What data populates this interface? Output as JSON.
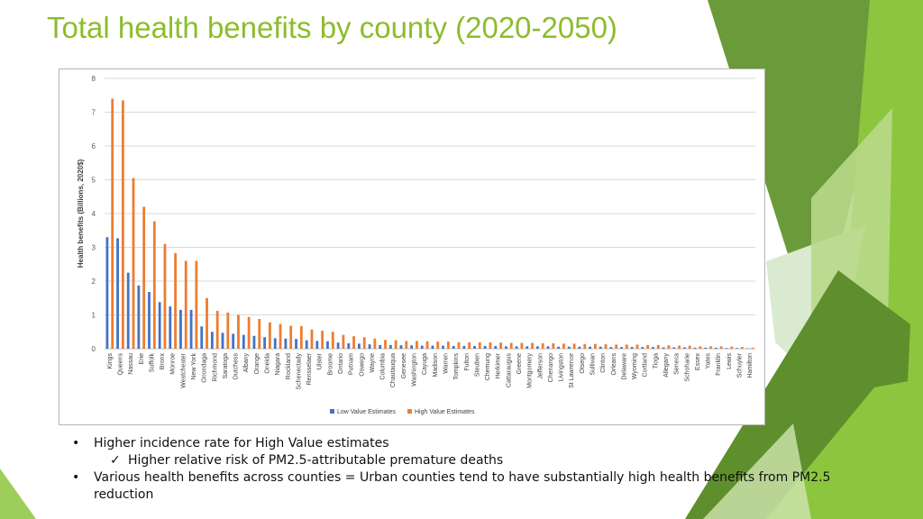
{
  "slide": {
    "title": "Total health benefits by county (2020-2050)"
  },
  "colors": {
    "title": "#8cbd2c",
    "low_series": "#4472c4",
    "high_series": "#ed7d31",
    "decor_greens": [
      "#6b9a3a",
      "#8cc63f",
      "#5e8f2c",
      "#b8d98a",
      "#d9ead0"
    ]
  },
  "chart_data": {
    "type": "bar",
    "title": "",
    "xlabel": "",
    "ylabel": "Health benefits (Billions, 2020$)",
    "ylim": [
      0,
      8
    ],
    "yticks": [
      0,
      1,
      2,
      3,
      4,
      5,
      6,
      7,
      8
    ],
    "grid": true,
    "legend": "bottom",
    "categories": [
      "Kings",
      "Queens",
      "Nassau",
      "Erie",
      "Suffolk",
      "Bronx",
      "Monroe",
      "Westchester",
      "New York",
      "Onondaga",
      "Richmond",
      "Saratoga",
      "Dutchess",
      "Albany",
      "Orange",
      "Oneida",
      "Niagara",
      "Rockland",
      "Schenectady",
      "Rensselaer",
      "Ulster",
      "Broome",
      "Ontario",
      "Putnam",
      "Oswego",
      "Wayne",
      "Columbia",
      "Chautauqua",
      "Genesee",
      "Washington",
      "Cayuga",
      "Madison",
      "Warren",
      "Tompkins",
      "Fulton",
      "Steuben",
      "Chemung",
      "Herkimer",
      "Cattaraugus",
      "Greene",
      "Montgomery",
      "Jefferson",
      "Chenango",
      "Livingston",
      "St Lawrence",
      "Otsego",
      "Sullivan",
      "Clinton",
      "Orleans",
      "Delaware",
      "Wyoming",
      "Cortland",
      "Tioga",
      "Allegany",
      "Seneca",
      "Schoharie",
      "Essex",
      "Yates",
      "Franklin",
      "Lewis",
      "Schuyler",
      "Hamilton"
    ],
    "series": [
      {
        "name": "Low Value Estimates",
        "color": "#4472c4",
        "values": [
          3.3,
          3.27,
          2.25,
          1.87,
          1.68,
          1.38,
          1.25,
          1.15,
          1.15,
          0.66,
          0.5,
          0.47,
          0.44,
          0.41,
          0.38,
          0.34,
          0.31,
          0.3,
          0.29,
          0.25,
          0.23,
          0.22,
          0.18,
          0.16,
          0.15,
          0.13,
          0.11,
          0.11,
          0.1,
          0.1,
          0.09,
          0.09,
          0.09,
          0.08,
          0.08,
          0.08,
          0.08,
          0.08,
          0.07,
          0.07,
          0.07,
          0.07,
          0.07,
          0.06,
          0.06,
          0.06,
          0.06,
          0.06,
          0.05,
          0.05,
          0.05,
          0.05,
          0.05,
          0.04,
          0.04,
          0.04,
          0.03,
          0.03,
          0.03,
          0.02,
          0.02,
          0.01
        ]
      },
      {
        "name": "High Value Estimates",
        "color": "#ed7d31",
        "values": [
          7.4,
          7.35,
          5.05,
          4.2,
          3.77,
          3.1,
          2.83,
          2.6,
          2.6,
          1.5,
          1.12,
          1.07,
          1.0,
          0.94,
          0.88,
          0.78,
          0.73,
          0.68,
          0.67,
          0.57,
          0.53,
          0.5,
          0.41,
          0.37,
          0.34,
          0.3,
          0.26,
          0.25,
          0.23,
          0.23,
          0.22,
          0.21,
          0.21,
          0.19,
          0.19,
          0.19,
          0.19,
          0.18,
          0.17,
          0.17,
          0.17,
          0.16,
          0.16,
          0.15,
          0.15,
          0.14,
          0.14,
          0.13,
          0.12,
          0.12,
          0.12,
          0.11,
          0.11,
          0.1,
          0.09,
          0.09,
          0.07,
          0.07,
          0.07,
          0.06,
          0.05,
          0.03
        ]
      }
    ]
  },
  "bullets": {
    "marker": "•",
    "check": "✓",
    "b1": "Higher incidence rate for High Value estimates",
    "b1_sub": "Higher relative risk of PM2.5-attributable premature deaths",
    "b2": "Various health benefits across counties = Urban counties tend to have substantially high health benefits from PM2.5 reduction"
  }
}
